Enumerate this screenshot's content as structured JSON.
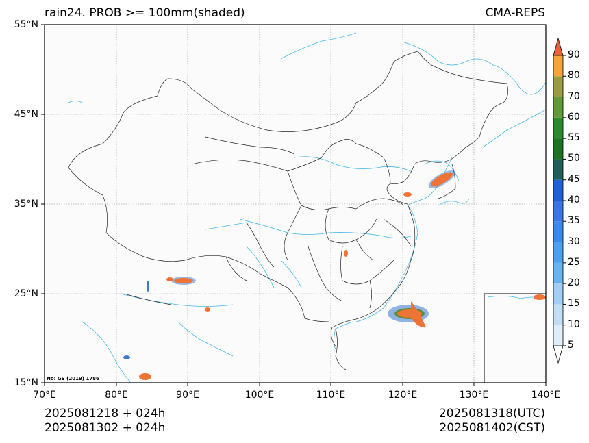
{
  "map": {
    "title_left": "rain24. PROB >= 100mm(shaded)",
    "title_right": "CMA-REPS",
    "lat_labels": [
      "55°N",
      "45°N",
      "35°N",
      "25°N",
      "15°N"
    ],
    "lon_labels": [
      "70°E",
      "80°E",
      "90°E",
      "100°E",
      "110°E",
      "120°E",
      "130°E",
      "140°E"
    ],
    "review_number": "No: GS (2019) 1786",
    "footer_left_1": "2025081218  +  024h",
    "footer_left_2": "2025081302  +  024h",
    "footer_right_1": "2025081318(UTC)",
    "footer_right_2": "2025081402(CST)"
  },
  "colorbar": {
    "levels": [
      "5",
      "10",
      "15",
      "20",
      "25",
      "30",
      "35",
      "40",
      "45",
      "50",
      "55",
      "60",
      "70",
      "80",
      "90"
    ],
    "colors": [
      "#deeefb",
      "#c3ddf5",
      "#a3cdf2",
      "#66b4f0",
      "#4d9ff0",
      "#3b88ef",
      "#3c73e6",
      "#1f60d6",
      "#1f5f5a",
      "#1e7323",
      "#2d8a2d",
      "#629a3b",
      "#9c9c42",
      "#f4a63a",
      "#f47f2e",
      "#e7613b"
    ]
  },
  "rain_areas": {
    "color_core": "#ef7334",
    "color_mid": "#5a8f3a",
    "color_edge": "#3a78d2"
  }
}
